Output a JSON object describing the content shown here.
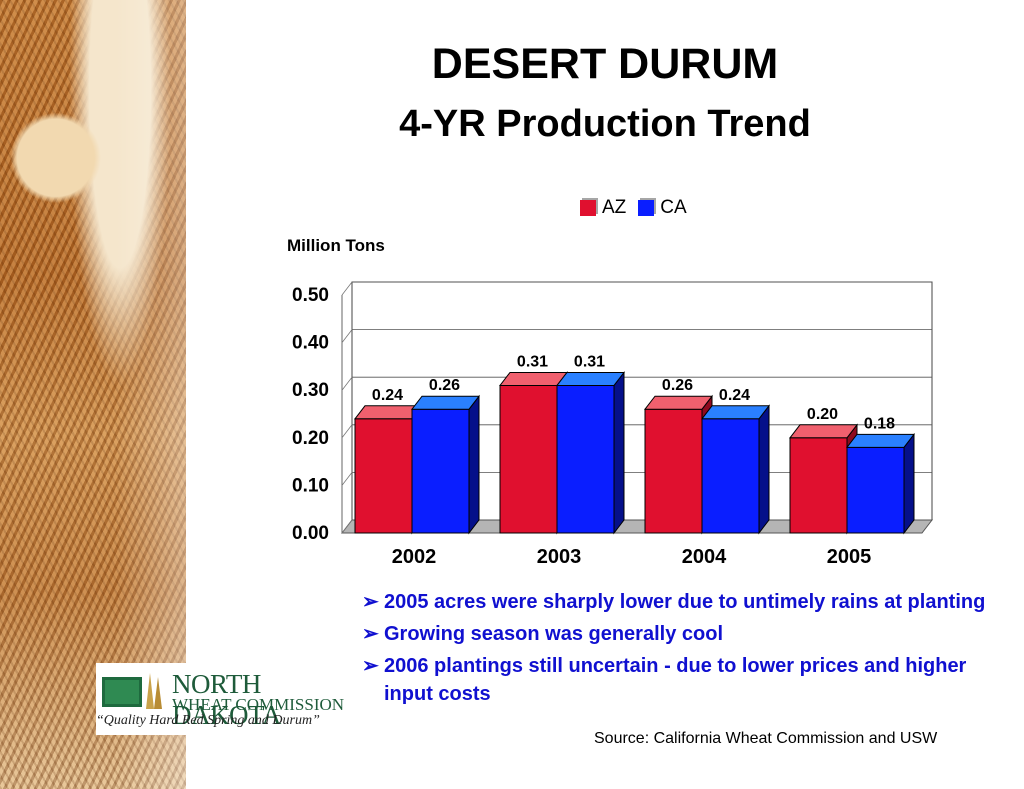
{
  "title": "DESERT DURUM",
  "subtitle": "4-YR Production Trend",
  "logo": {
    "line1": "NORTH DAKOTA",
    "line2": "WHEAT COMMISSION",
    "tagline": "“Quality Hard Red Spring and Durum”"
  },
  "bullets": [
    "2005 acres were sharply lower due to untimely rains at planting",
    "Growing season was generally cool",
    "2006 plantings still uncertain - due to lower prices and higher input costs"
  ],
  "source": "Source: California Wheat Commission and USW",
  "chart_data": {
    "type": "bar",
    "ylabel": "Million Tons",
    "categories": [
      "2002",
      "2003",
      "2004",
      "2005"
    ],
    "series": [
      {
        "name": "AZ",
        "values": [
          0.24,
          0.31,
          0.26,
          0.2
        ],
        "labels": [
          "0.24",
          "0.31",
          "0.26",
          "0.20"
        ],
        "color": "#e0102f"
      },
      {
        "name": "CA",
        "values": [
          0.26,
          0.31,
          0.24,
          0.18
        ],
        "labels": [
          "0.26",
          "0.31",
          "0.24",
          "0.18"
        ],
        "color": "#0a1eff"
      }
    ],
    "yticks": [
      "0.00",
      "0.10",
      "0.20",
      "0.30",
      "0.40",
      "0.50"
    ],
    "ylim": [
      0,
      0.5
    ],
    "grid": true,
    "legend_position": "top"
  }
}
